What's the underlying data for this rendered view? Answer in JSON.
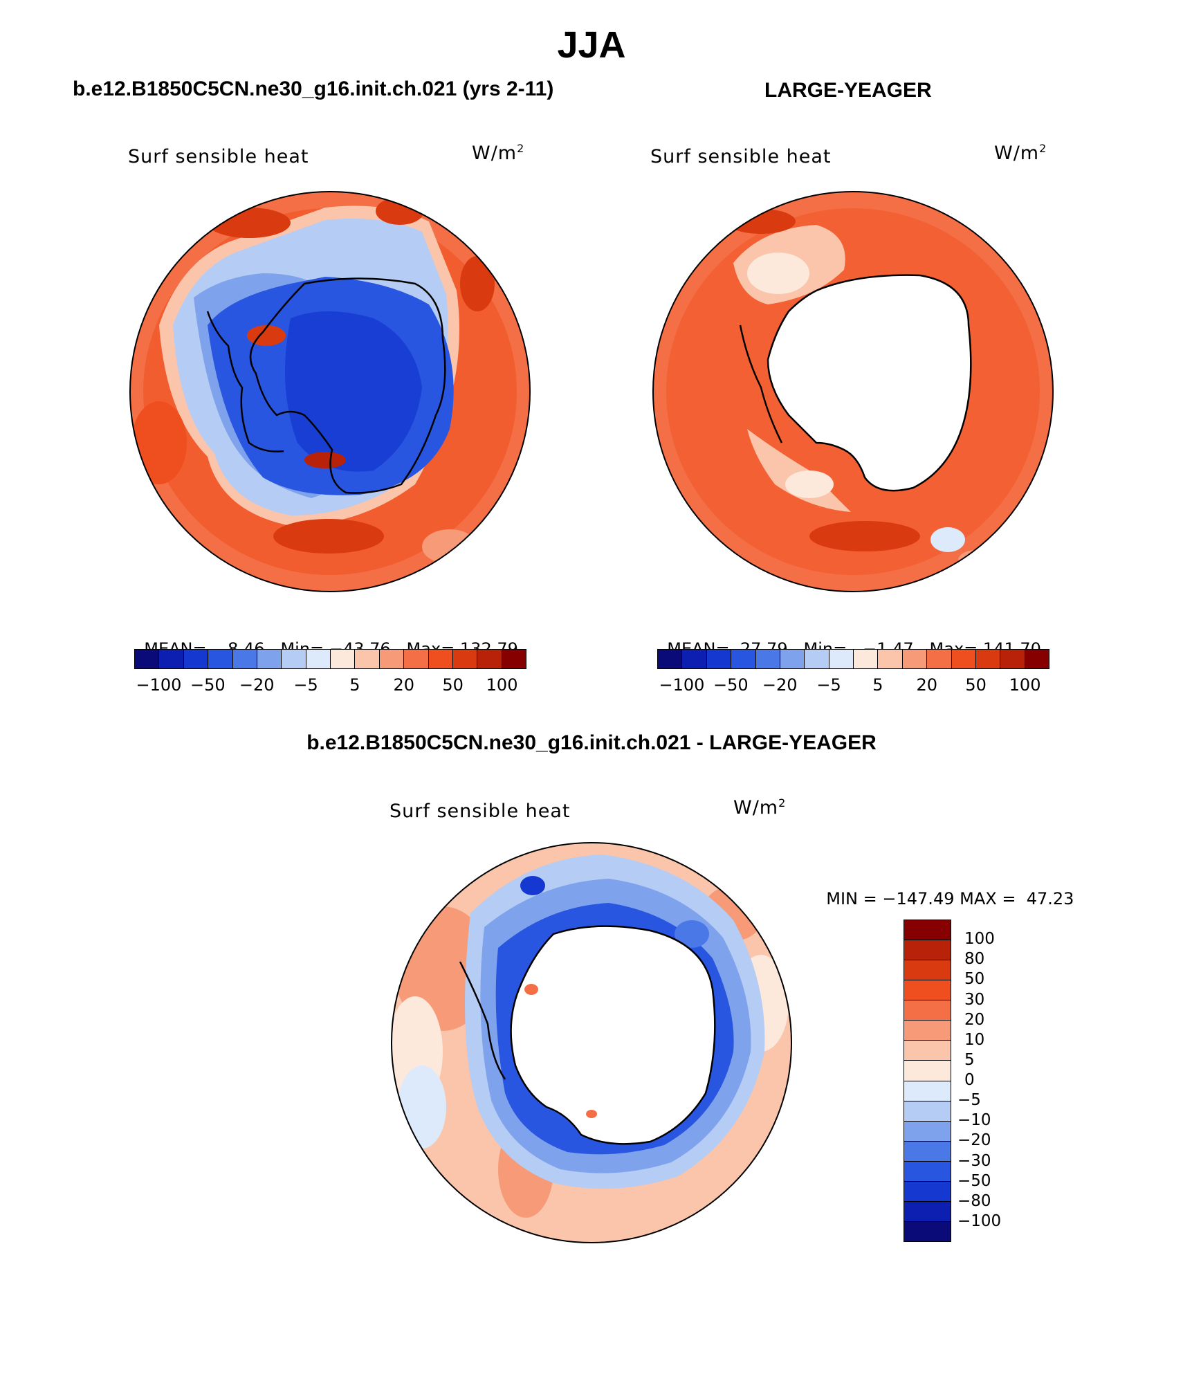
{
  "title": "JJA",
  "panels": [
    {
      "case_title": "b.e12.B1850C5CN.ne30_g16.init.ch.021 (yrs 2-11)",
      "variable": "Surf sensible heat",
      "units_base": "W/m",
      "units_exp": "2",
      "stats": {
        "mean_label": "MEAN=",
        "mean": "8.46",
        "min_label": "Min=",
        "min": "−43.76",
        "max_label": "Max=",
        "max": "132.79"
      }
    },
    {
      "case_title": "LARGE-YEAGER",
      "variable": "Surf sensible heat",
      "units_base": "W/m",
      "units_exp": "2",
      "stats": {
        "mean_label": "MEAN=",
        "mean": "27.79",
        "min_label": "Min=",
        "min": "−1.47",
        "max_label": "Max=",
        "max": "141.70"
      }
    },
    {
      "case_title": "b.e12.B1850C5CN.ne30_g16.init.ch.021 - LARGE-YEAGER",
      "variable": "Surf sensible heat",
      "units_base": "W/m",
      "units_exp": "2",
      "stats": {
        "min_label": "MIN =",
        "min": "−147.49",
        "max_label": "MAX =",
        "max": "47.23"
      }
    }
  ],
  "colorbar_horizontal": {
    "colors": [
      "#0a0a78",
      "#0c1fb0",
      "#1538d0",
      "#2856e0",
      "#4a78e6",
      "#7fa2ec",
      "#b5ccf4",
      "#ddeafb",
      "#fde8dc",
      "#fbc5ac",
      "#f79a77",
      "#f46f45",
      "#ef4e1e",
      "#d93a10",
      "#b82208",
      "#870000"
    ],
    "tick_labels": [
      "−100",
      "−50",
      "−20",
      "−5",
      "5",
      "20",
      "50",
      "100"
    ]
  },
  "colorbar_vertical": {
    "colors_top_to_bottom": [
      "#870000",
      "#b82208",
      "#d93a10",
      "#ef4e1e",
      "#f46f45",
      "#f79a77",
      "#fbc5ac",
      "#fde8dc",
      "#ddeafb",
      "#b5ccf4",
      "#7fa2ec",
      "#4a78e6",
      "#2856e0",
      "#1538d0",
      "#0c1fb0",
      "#0a0a78"
    ],
    "tick_labels": [
      "100",
      "80",
      "50",
      "30",
      "20",
      "10",
      "5",
      "0",
      "−5",
      "−10",
      "−20",
      "−30",
      "−50",
      "−80",
      "−100"
    ]
  }
}
